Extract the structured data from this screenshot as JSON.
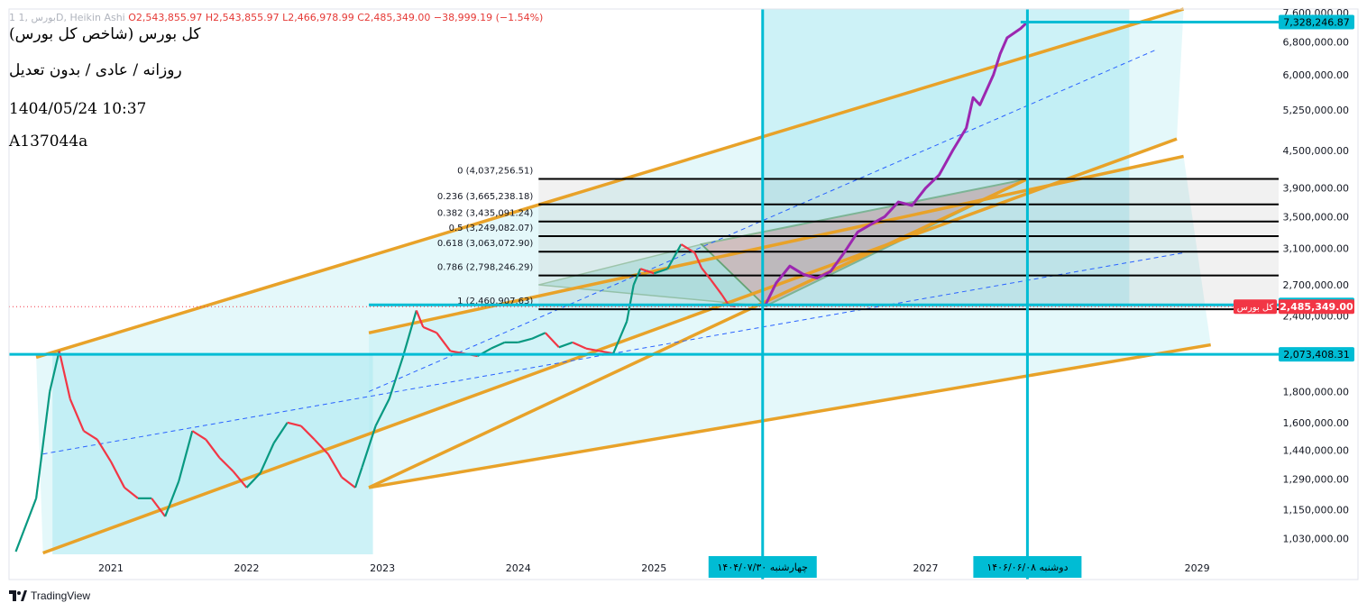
{
  "header": {
    "ohlc": {
      "symbol": "1 بورس ,1D, Heikin Ashi",
      "open": "O2,543,855.97",
      "high": "H2,543,855.97",
      "low": "L2,466,978.99",
      "close": "C2,485,349.00",
      "change": "−38,999.19 (−1.54%)"
    },
    "title": "کل بورس (شاخص کل بورس)",
    "subtitle": "روزانه / عادی / بدون تعدیل",
    "datetime": "1404/05/24 10:37",
    "code": "A137044a"
  },
  "branding": {
    "logo_text": "TradingView"
  },
  "colors": {
    "candle_up": "#089981",
    "candle_down": "#f23645",
    "projection": "#9c27b0",
    "cyan_line": "#00bcd4",
    "channel": "#e8a229",
    "fib_line": "#000000",
    "price_badge": "#f23645",
    "range_fill": "#b2ebf2"
  },
  "chart_data": {
    "type": "line",
    "y_scale": "log",
    "ylim": [
      970000,
      7700000
    ],
    "xlim": [
      2020.25,
      2029.6
    ],
    "x_ticks": [
      "2021",
      "2022",
      "2023",
      "2024",
      "2025",
      "2027",
      "2029"
    ],
    "y_ticks": [
      "7,600,000.00",
      "6,800,000.00",
      "6,000,000.00",
      "5,250,000.00",
      "4,500,000.00",
      "3,900,000.00",
      "3,500,000.00",
      "3,100,000.00",
      "2,700,000.00",
      "2,400,000.00",
      "2,073,408.31",
      "1,800,000.00",
      "1,600,000.00",
      "1,440,000.00",
      "1,290,000.00",
      "1,150,000.00",
      "1,030,000.00"
    ],
    "price_labels": [
      {
        "value": "7,328,246.87",
        "kind": "marker"
      },
      {
        "value": "2,502,780.24",
        "kind": "marker"
      },
      {
        "value": "2,485,349.00",
        "kind": "current",
        "name": "کل بورس"
      },
      {
        "value": "2,073,408.31",
        "kind": "marker"
      }
    ],
    "date_labels": [
      "چهارشنبه ۱۴۰۴/۰۷/۳۰",
      "دوشنبه ۱۴۰۶/۰۶/۰۸"
    ],
    "date_label_years": [
      2025.8,
      2027.75
    ],
    "fibonacci": [
      {
        "label": "0 (4,037,256.51)",
        "price": 4037256.51
      },
      {
        "label": "0.236 (3,665,238.18)",
        "price": 3665238.18
      },
      {
        "label": "0.382 (3,435,091.24)",
        "price": 3435091.24
      },
      {
        "label": "0.5 (3,249,082.07)",
        "price": 3249082.07
      },
      {
        "label": "0.618 (3,063,072.90)",
        "price": 3063072.9
      },
      {
        "label": "0.786 (2,798,246.29)",
        "price": 2798246.29
      },
      {
        "label": "1 (2,460,907.63)",
        "price": 2460907.63
      }
    ],
    "horizontal_lines": [
      7328246.87,
      2502780.24,
      2073408.31
    ],
    "vertical_lines": [
      2025.8,
      2027.75
    ],
    "series": [
      {
        "type": "candles",
        "x": [
          2020.3,
          2020.45,
          2020.55,
          2020.62,
          2020.7,
          2020.8,
          2020.9,
          2021.0,
          2021.1,
          2021.2,
          2021.3,
          2021.4,
          2021.5,
          2021.6,
          2021.7,
          2021.8,
          2021.9,
          2022.0,
          2022.1,
          2022.2,
          2022.3,
          2022.4,
          2022.5,
          2022.6,
          2022.7,
          2022.8,
          2022.85,
          2022.95,
          2023.05,
          2023.15,
          2023.25,
          2023.3,
          2023.4,
          2023.5,
          2023.6,
          2023.7,
          2023.8,
          2023.9,
          2024.0,
          2024.1,
          2024.2,
          2024.3,
          2024.4,
          2024.5,
          2024.6,
          2024.7,
          2024.8,
          2024.85,
          2024.9,
          2025.0,
          2025.1,
          2025.2,
          2025.3,
          2025.35,
          2025.42,
          2025.5,
          2025.55,
          2025.6
        ],
        "values": [
          980000,
          1200000,
          1800000,
          2100000,
          1750000,
          1550000,
          1500000,
          1380000,
          1250000,
          1200000,
          1200000,
          1120000,
          1280000,
          1550000,
          1500000,
          1400000,
          1330000,
          1250000,
          1320000,
          1480000,
          1600000,
          1580000,
          1500000,
          1420000,
          1300000,
          1250000,
          1350000,
          1580000,
          1750000,
          2050000,
          2450000,
          2300000,
          2250000,
          2100000,
          2080000,
          2060000,
          2120000,
          2170000,
          2170000,
          2200000,
          2250000,
          2130000,
          2170000,
          2120000,
          2100000,
          2080000,
          2350000,
          2700000,
          2870000,
          2820000,
          2870000,
          3150000,
          3050000,
          2880000,
          2750000,
          2600000,
          2500000,
          2485349
        ]
      },
      {
        "name": "projection",
        "x": [
          2025.82,
          2025.9,
          2026.0,
          2026.1,
          2026.2,
          2026.3,
          2026.4,
          2026.5,
          2026.6,
          2026.7,
          2026.8,
          2026.9,
          2027.0,
          2027.1,
          2027.2,
          2027.3,
          2027.35,
          2027.4,
          2027.5,
          2027.55,
          2027.6,
          2027.7,
          2027.75
        ],
        "values": [
          2500000,
          2720000,
          2900000,
          2810000,
          2770000,
          2840000,
          3050000,
          3300000,
          3400000,
          3500000,
          3700000,
          3650000,
          3900000,
          4100000,
          4500000,
          4900000,
          5500000,
          5350000,
          6000000,
          6500000,
          6900000,
          7150000,
          7328246
        ]
      }
    ]
  }
}
